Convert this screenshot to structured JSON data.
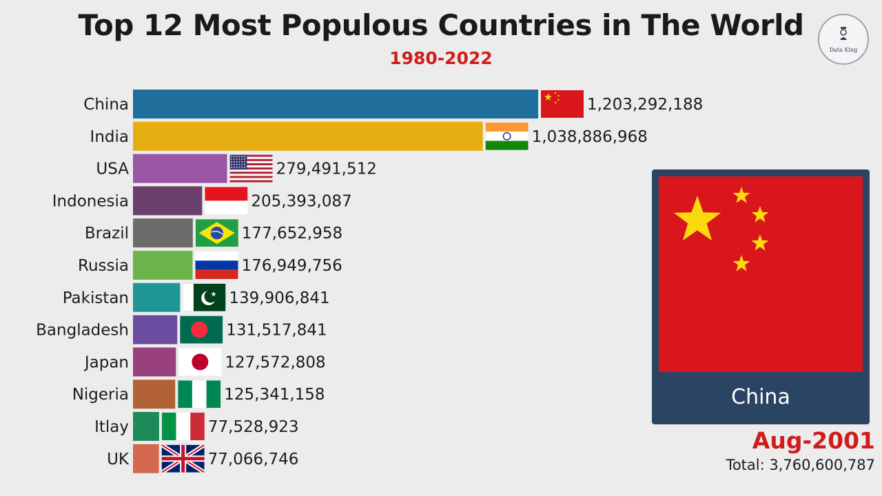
{
  "header": {
    "title": "Top 12 Most Populous Countries in The World",
    "subtitle": "1980-2022",
    "logo_text": "Data King"
  },
  "colors": {
    "title_accent": "#d01c1c",
    "panel_bg": "#2b4463"
  },
  "chart_data": {
    "type": "bar",
    "orientation": "horizontal",
    "title": "Top 12 Most Populous Countries in The World",
    "subtitle": "1980-2022",
    "categories": [
      "China",
      "India",
      "USA",
      "Indonesia",
      "Brazil",
      "Russia",
      "Pakistan",
      "Bangladesh",
      "Japan",
      "Nigeria",
      "Itlay",
      "UK"
    ],
    "values": [
      1203292188,
      1038886968,
      279491512,
      205393087,
      177652958,
      176949756,
      139906841,
      131517841,
      127572808,
      125341158,
      77528923,
      77066746
    ],
    "value_labels": [
      "1,203,292,188",
      "1,038,886,968",
      "279,491,512",
      "205,393,087",
      "177,652,958",
      "176,949,756",
      "139,906,841",
      "131,517,841",
      "127,572,808",
      "125,341,158",
      "77,528,923",
      "77,066,746"
    ],
    "bar_colors": [
      "#1f6e9c",
      "#e6ad12",
      "#9b55a5",
      "#6b3f6b",
      "#6b6b6b",
      "#6bb54a",
      "#1f9696",
      "#6a4da0",
      "#99417e",
      "#b26236",
      "#1e8a5a",
      "#d3684f"
    ],
    "flags": [
      "china-flag",
      "india-flag",
      "usa-flag",
      "indonesia-flag",
      "brazil-flag",
      "russia-flag",
      "pakistan-flag",
      "bangladesh-flag",
      "japan-flag",
      "nigeria-flag",
      "italy-flag",
      "uk-flag"
    ],
    "xlabel": "",
    "ylabel": "",
    "grid": false
  },
  "leader_panel": {
    "country": "China",
    "flag": "china-flag"
  },
  "footer": {
    "date": "Aug-2001",
    "total": "Total: 3,760,600,787"
  }
}
